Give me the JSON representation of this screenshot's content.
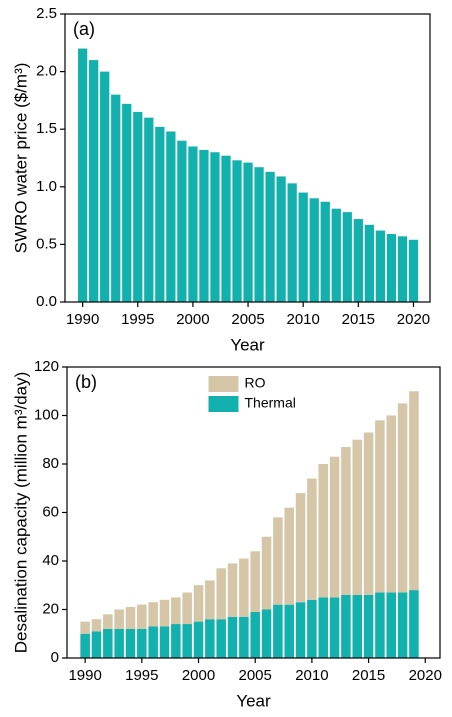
{
  "chart_data": [
    {
      "type": "bar",
      "panel_label": "(a)",
      "xlabel": "Year",
      "ylabel": "SWRO water price ($/m³)",
      "x": [
        1990,
        1991,
        1992,
        1993,
        1994,
        1995,
        1996,
        1997,
        1998,
        1999,
        2000,
        2001,
        2002,
        2003,
        2004,
        2005,
        2006,
        2007,
        2008,
        2009,
        2010,
        2011,
        2012,
        2013,
        2014,
        2015,
        2016,
        2017,
        2018,
        2019,
        2020
      ],
      "values": [
        2.2,
        2.1,
        2.0,
        1.8,
        1.72,
        1.65,
        1.6,
        1.52,
        1.48,
        1.4,
        1.35,
        1.32,
        1.3,
        1.27,
        1.23,
        1.21,
        1.17,
        1.13,
        1.09,
        1.03,
        0.95,
        0.9,
        0.87,
        0.81,
        0.78,
        0.72,
        0.67,
        0.62,
        0.59,
        0.57,
        0.54
      ],
      "color": "#13b1ad",
      "xlim": [
        1988.4,
        2021.5
      ],
      "xticks": [
        1990,
        1995,
        2000,
        2005,
        2010,
        2015,
        2020
      ],
      "ylim": [
        0,
        2.5
      ],
      "yticks": [
        {
          "value": 0,
          "label": "0.0"
        },
        0.5,
        {
          "value": 1,
          "label": "1.0"
        },
        1.5,
        {
          "value": 2,
          "label": "2.0"
        },
        2.5
      ]
    },
    {
      "type": "stacked_bar",
      "panel_label": "(b)",
      "xlabel": "Year",
      "ylabel": "Desalination capacity (million m³/day)",
      "x": [
        1990,
        1991,
        1992,
        1993,
        1994,
        1995,
        1996,
        1997,
        1998,
        1999,
        2000,
        2001,
        2002,
        2003,
        2004,
        2005,
        2006,
        2007,
        2008,
        2009,
        2010,
        2011,
        2012,
        2013,
        2014,
        2015,
        2016,
        2017,
        2018,
        2019
      ],
      "series": [
        {
          "name": "Thermal",
          "color": "#13b1ad",
          "values": [
            10,
            11,
            12,
            12,
            12,
            12,
            13,
            13,
            14,
            14,
            15,
            16,
            16,
            17,
            17,
            19,
            20,
            22,
            22,
            23,
            24,
            25,
            25,
            26,
            26,
            26,
            27,
            27,
            27,
            28
          ]
        },
        {
          "name": "RO",
          "color": "#d4c6a6",
          "values": [
            5,
            5,
            6,
            8,
            9,
            10,
            10,
            11,
            11,
            13,
            15,
            16,
            21,
            22,
            24,
            25,
            30,
            36,
            40,
            45,
            50,
            55,
            58,
            61,
            64,
            67,
            71,
            73,
            78,
            82
          ]
        }
      ],
      "legend": "top-center",
      "xlim": [
        1988.4,
        2021.3
      ],
      "xticks": [
        1990,
        1995,
        2000,
        2005,
        2010,
        2015,
        2020
      ],
      "ylim": [
        0,
        120
      ],
      "yticks": [
        0,
        20,
        40,
        60,
        80,
        100,
        120
      ]
    }
  ]
}
